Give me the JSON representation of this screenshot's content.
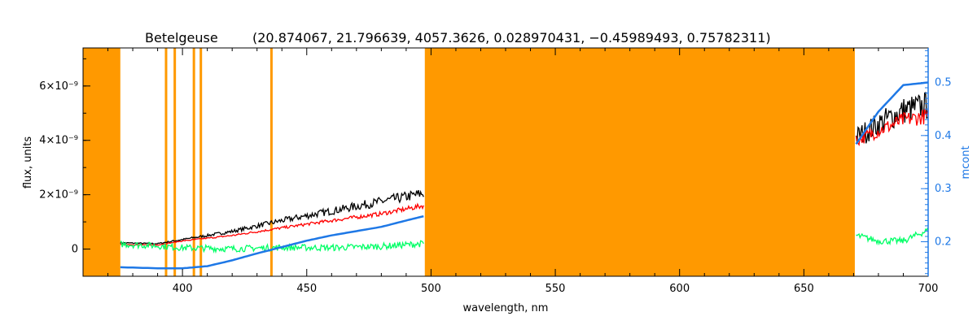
{
  "chart_data": {
    "type": "line",
    "title": "Betelgeuse",
    "subtitle": "(20.874067, 21.796639, 4057.3626, 0.028970431, −0.45989493, 0.75782311)",
    "xlabel": "wavelength, nm",
    "ylabel": "flux, units",
    "y2label": "mcont",
    "xlim": [
      360,
      700
    ],
    "ylim": [
      -1e-09,
      7.4e-09
    ],
    "y2lim": [
      0.135,
      0.565
    ],
    "x_ticks": [
      400,
      450,
      500,
      550,
      600,
      650,
      700
    ],
    "y_ticks": [
      {
        "value": 0,
        "label": "0"
      },
      {
        "value": 2e-09,
        "label": "2×10⁻⁹"
      },
      {
        "value": 4e-09,
        "label": "4×10⁻⁹"
      },
      {
        "value": 6e-09,
        "label": "6×10⁻⁹"
      }
    ],
    "y2_ticks": [
      {
        "value": 0.2,
        "label": "0.2"
      },
      {
        "value": 0.3,
        "label": "0.3"
      },
      {
        "value": 0.4,
        "label": "0.4"
      },
      {
        "value": 0.5,
        "label": "0.5"
      }
    ],
    "masked_bands": [
      [
        360,
        375
      ],
      [
        497.5,
        670.5
      ]
    ],
    "masked_lines": [
      393.4,
      396.9,
      404.6,
      407.4,
      435.8
    ],
    "series": [
      {
        "color": "#000000",
        "axis": "left",
        "noise": 0.1,
        "points": [
          [
            375,
            2.3e-10
          ],
          [
            390,
            2e-10
          ],
          [
            400,
            3.5e-10
          ],
          [
            420,
            6.5e-10
          ],
          [
            440,
            1.05e-09
          ],
          [
            460,
            1.4e-09
          ],
          [
            480,
            1.75e-09
          ],
          [
            497,
            2.05e-09
          ],
          [
            671,
            4.1e-09
          ],
          [
            680,
            4.6e-09
          ],
          [
            690,
            5.1e-09
          ],
          [
            700,
            5.3e-09
          ]
        ]
      },
      {
        "color": "#ff0000",
        "axis": "left",
        "noise": 0.06,
        "points": [
          [
            375,
            1.7e-10
          ],
          [
            390,
            1.5e-10
          ],
          [
            400,
            3e-10
          ],
          [
            420,
            5e-10
          ],
          [
            440,
            7.8e-10
          ],
          [
            460,
            1.05e-09
          ],
          [
            480,
            1.3e-09
          ],
          [
            497,
            1.6e-09
          ],
          [
            671,
            4e-09
          ],
          [
            680,
            4.35e-09
          ],
          [
            690,
            4.75e-09
          ],
          [
            700,
            4.9e-09
          ]
        ]
      },
      {
        "color": "#00ff66",
        "axis": "left",
        "noise": 0.0,
        "points": [
          [
            375,
            1.8e-10
          ],
          [
            390,
            1.2e-10
          ],
          [
            400,
            5e-11
          ],
          [
            420,
            1e-11
          ],
          [
            440,
            6e-11
          ],
          [
            460,
            5e-11
          ],
          [
            480,
            1e-10
          ],
          [
            497,
            2e-10
          ],
          [
            671,
            5e-10
          ],
          [
            680,
            3e-10
          ],
          [
            690,
            3e-10
          ],
          [
            700,
            7e-10
          ]
        ]
      },
      {
        "color": "#1e78e6",
        "axis": "right",
        "noise": 0.0,
        "points": [
          [
            375,
            0.152
          ],
          [
            390,
            0.15
          ],
          [
            400,
            0.15
          ],
          [
            410,
            0.154
          ],
          [
            420,
            0.165
          ],
          [
            430,
            0.178
          ],
          [
            440,
            0.19
          ],
          [
            450,
            0.202
          ],
          [
            460,
            0.212
          ],
          [
            470,
            0.22
          ],
          [
            480,
            0.228
          ],
          [
            490,
            0.24
          ],
          [
            497,
            0.248
          ],
          [
            671,
            0.384
          ],
          [
            680,
            0.445
          ],
          [
            690,
            0.495
          ],
          [
            700,
            0.5
          ]
        ]
      }
    ]
  }
}
